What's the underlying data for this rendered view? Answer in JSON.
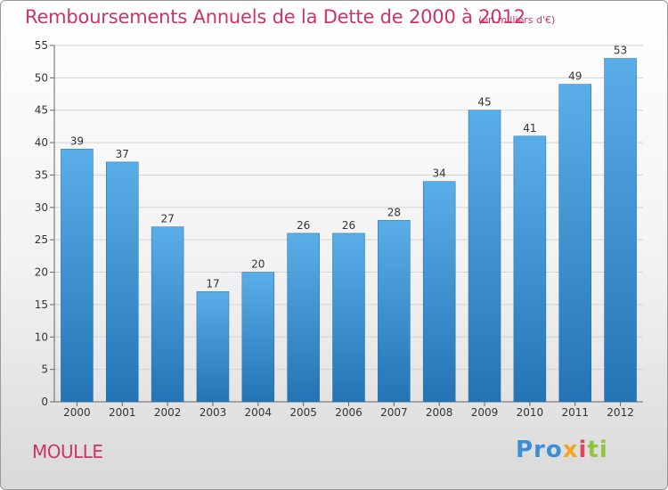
{
  "header": {
    "title": "Remboursements Annuels de la Dette de 2000 à 2012",
    "subtitle": "(en milliers d'€)"
  },
  "footer": {
    "commune": "MOULLE",
    "logo": {
      "part1": "Pro",
      "part2": "x",
      "part3": "i",
      "part4": "ti"
    }
  },
  "colors": {
    "title": "#cc3366",
    "bar_top": "#5aaee8",
    "bar_bottom": "#2474b5"
  },
  "chart_data": {
    "type": "bar",
    "title": "Remboursements Annuels de la Dette de 2000 à 2012",
    "subtitle": "(en milliers d'€)",
    "categories": [
      "2000",
      "2001",
      "2002",
      "2003",
      "2004",
      "2005",
      "2006",
      "2007",
      "2008",
      "2009",
      "2010",
      "2011",
      "2012"
    ],
    "values": [
      39,
      37,
      27,
      17,
      20,
      26,
      26,
      28,
      34,
      45,
      41,
      49,
      53
    ],
    "ylim": [
      0,
      55
    ],
    "yticks": [
      0,
      5,
      10,
      15,
      20,
      25,
      30,
      35,
      40,
      45,
      50,
      55
    ],
    "grid": true,
    "xlabel": "",
    "ylabel": ""
  }
}
